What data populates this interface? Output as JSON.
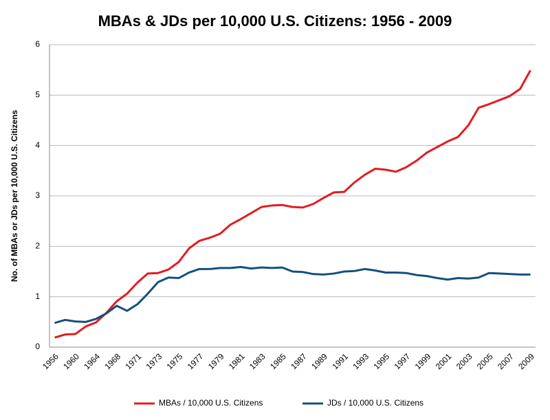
{
  "chart_data": {
    "type": "line",
    "title": "MBAs & JDs per 10,000 U.S. Citizens: 1956 - 2009",
    "y_label": "No. of MBAs or JDs per 10,000 U.S. Citizens",
    "categories": [
      "1956",
      null,
      "1960",
      null,
      "1964",
      null,
      "1968",
      null,
      "1971",
      null,
      "1973",
      null,
      "1975",
      null,
      "1977",
      null,
      "1979",
      null,
      "1981",
      null,
      "1983",
      null,
      "1985",
      null,
      "1987",
      null,
      "1989",
      null,
      "1991",
      null,
      "1993",
      null,
      "1995",
      null,
      "1997",
      null,
      "1999",
      null,
      "2001",
      null,
      "2003",
      null,
      "2005",
      null,
      "2007",
      null,
      "2009"
    ],
    "series": [
      {
        "name": "MBAs / 10,000 U.S. Citizens",
        "color": "#e31b1f",
        "values": [
          0.19,
          0.25,
          0.26,
          0.41,
          0.49,
          0.68,
          0.91,
          1.06,
          1.28,
          1.46,
          1.47,
          1.54,
          1.69,
          1.96,
          2.11,
          2.17,
          2.25,
          2.43,
          2.54,
          2.66,
          2.78,
          2.81,
          2.82,
          2.78,
          2.77,
          2.84,
          2.96,
          3.07,
          3.08,
          3.27,
          3.42,
          3.54,
          3.52,
          3.48,
          3.57,
          3.7,
          3.86,
          3.97,
          4.08,
          4.17,
          4.4,
          4.75,
          4.82,
          4.9,
          4.98,
          5.12,
          5.49
        ]
      },
      {
        "name": "JDs / 10,000 U.S. Citizens",
        "color": "#14507d",
        "values": [
          0.48,
          0.54,
          0.51,
          0.5,
          0.56,
          0.67,
          0.82,
          0.72,
          0.85,
          1.06,
          1.29,
          1.38,
          1.37,
          1.48,
          1.55,
          1.55,
          1.57,
          1.57,
          1.59,
          1.56,
          1.58,
          1.57,
          1.58,
          1.5,
          1.49,
          1.45,
          1.44,
          1.46,
          1.5,
          1.51,
          1.55,
          1.52,
          1.48,
          1.48,
          1.47,
          1.43,
          1.41,
          1.37,
          1.34,
          1.37,
          1.36,
          1.38,
          1.47,
          1.46,
          1.45,
          1.44,
          1.44
        ]
      }
    ],
    "ylim": [
      0,
      6
    ],
    "yticks": [
      0,
      1,
      2,
      3,
      4,
      5,
      6
    ],
    "grid": true,
    "legend": "bottom"
  }
}
